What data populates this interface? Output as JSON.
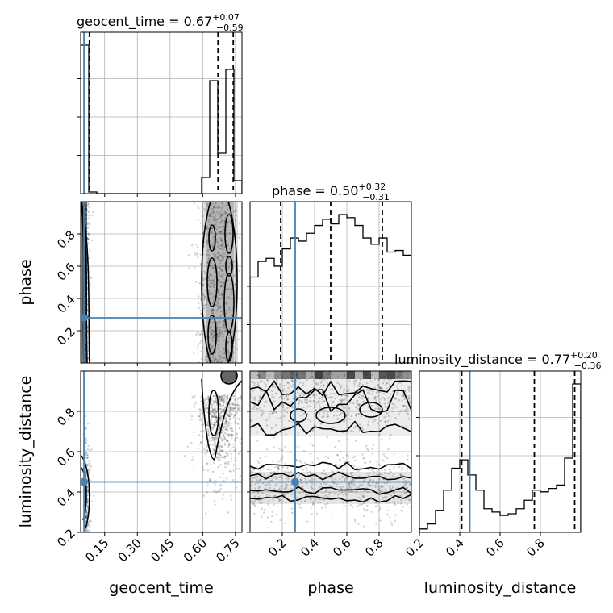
{
  "chart_data": {
    "type": "corner",
    "parameters": [
      "geocent_time",
      "phase",
      "luminosity_distance"
    ],
    "truth_values": {
      "geocent_time": 0.055,
      "phase": 0.28,
      "luminosity_distance": 0.45
    },
    "truth_color": "#4682b4",
    "grid": true,
    "diagonal_titles": [
      {
        "name": "geocent_time",
        "median": "0.67",
        "plus": "+0.07",
        "minus": "−0.59"
      },
      {
        "name": "phase",
        "median": "0.50",
        "plus": "+0.32",
        "minus": "−0.31"
      },
      {
        "name": "luminosity_distance",
        "median": "0.77",
        "plus": "+0.20",
        "minus": "−0.36"
      }
    ],
    "axis_labels": {
      "x": [
        "geocent_time",
        "phase",
        "luminosity_distance"
      ],
      "y": [
        "phase",
        "luminosity_distance"
      ]
    },
    "ticks": {
      "geocent_time": {
        "range": [
          0.04,
          0.78
        ],
        "values": [
          0.15,
          0.3,
          0.45,
          0.6,
          0.75
        ],
        "labels": [
          "0.15",
          "0.30",
          "0.45",
          "0.60",
          "0.75"
        ]
      },
      "phase": {
        "range": [
          0.0,
          1.0
        ],
        "values": [
          0.2,
          0.4,
          0.6,
          0.8
        ],
        "labels": [
          "0.2",
          "0.4",
          "0.6",
          "0.8"
        ]
      },
      "luminosity_distance": {
        "range": [
          0.2,
          1.0
        ],
        "values": [
          0.2,
          0.4,
          0.6,
          0.8
        ],
        "labels": [
          "0.2",
          "0.4",
          "0.6",
          "0.8"
        ]
      }
    },
    "histograms": {
      "geocent_time": {
        "edges": [
          0.04,
          0.077,
          0.114,
          0.151,
          0.188,
          0.225,
          0.262,
          0.299,
          0.336,
          0.373,
          0.41,
          0.447,
          0.484,
          0.521,
          0.558,
          0.595,
          0.632,
          0.669,
          0.706,
          0.743,
          0.78
        ],
        "counts": [
          0.92,
          0.01,
          0,
          0,
          0,
          0,
          0,
          0,
          0,
          0,
          0,
          0,
          0,
          0,
          0,
          0.1,
          0.7,
          0.25,
          0.77,
          0.08
        ],
        "quantiles": [
          0.08,
          0.67,
          0.74
        ]
      },
      "phase": {
        "edges": [
          0.0,
          0.05,
          0.1,
          0.15,
          0.2,
          0.25,
          0.3,
          0.35,
          0.4,
          0.45,
          0.5,
          0.55,
          0.6,
          0.65,
          0.7,
          0.75,
          0.8,
          0.85,
          0.9,
          0.95,
          1.0
        ],
        "counts": [
          0.55,
          0.65,
          0.67,
          0.62,
          0.73,
          0.8,
          0.78,
          0.83,
          0.88,
          0.92,
          0.89,
          0.95,
          0.93,
          0.88,
          0.8,
          0.76,
          0.8,
          0.71,
          0.72,
          0.69
        ],
        "quantiles": [
          0.19,
          0.5,
          0.82
        ]
      },
      "luminosity_distance": {
        "edges": [
          0.2,
          0.24,
          0.28,
          0.32,
          0.36,
          0.4,
          0.44,
          0.48,
          0.52,
          0.56,
          0.6,
          0.64,
          0.68,
          0.72,
          0.76,
          0.8,
          0.84,
          0.88,
          0.92,
          0.96,
          1.0
        ],
        "counts": [
          0.02,
          0.05,
          0.13,
          0.25,
          0.38,
          0.43,
          0.34,
          0.25,
          0.14,
          0.12,
          0.1,
          0.11,
          0.14,
          0.19,
          0.25,
          0.24,
          0.26,
          0.28,
          0.44,
          0.88
        ],
        "quantiles": [
          0.41,
          0.77,
          0.97
        ]
      }
    },
    "density_2d": {
      "phase_vs_geocent_time": {
        "clusters": [
          {
            "geocent_time": 0.06,
            "phase_range": [
              0.0,
              1.0
            ]
          },
          {
            "geocent_time": 0.69,
            "phase_range": [
              0.0,
              1.0
            ]
          }
        ]
      },
      "luminosity_distance_vs_geocent_time": {
        "clusters": [
          {
            "geocent_time": 0.06,
            "luminosity_distance_range": [
              0.28,
              0.62
            ]
          },
          {
            "geocent_time": 0.7,
            "luminosity_distance_range": [
              0.55,
              1.0
            ]
          }
        ]
      },
      "luminosity_distance_vs_phase": {
        "bands": [
          {
            "phase_range": [
              0.0,
              1.0
            ],
            "luminosity_distance_range": [
              0.33,
              0.54
            ]
          },
          {
            "phase_range": [
              0.0,
              1.0
            ],
            "luminosity_distance_range": [
              0.72,
              1.0
            ]
          }
        ]
      }
    }
  }
}
